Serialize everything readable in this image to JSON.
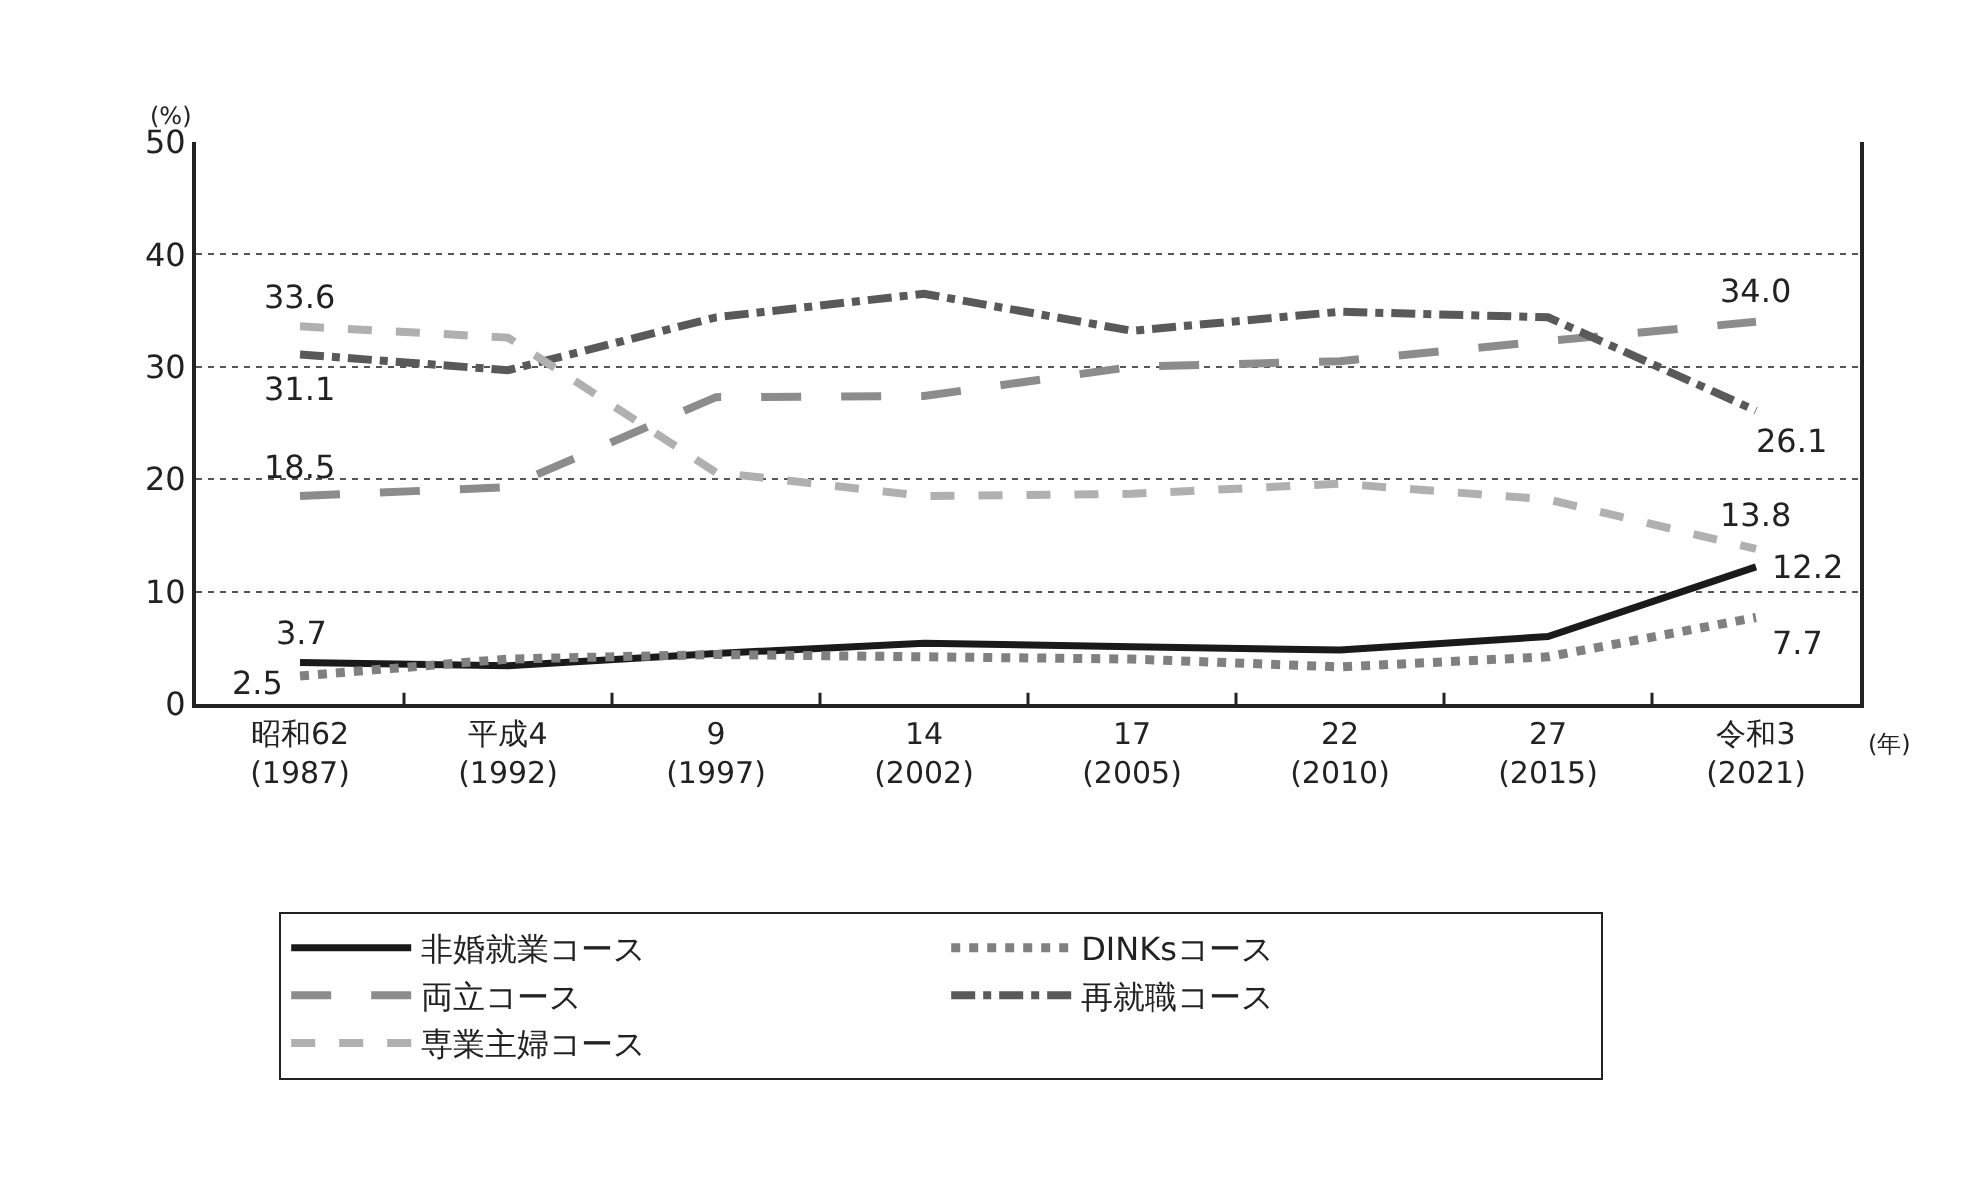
{
  "chart_data": {
    "type": "line",
    "ylabel": "(%)",
    "xlabel": "(年)",
    "categories": [
      "昭和62\n(1987)",
      "平成4\n(1992)",
      "9\n(1997)",
      "14\n(2002)",
      "17\n(2005)",
      "22\n(2010)",
      "27\n(2015)",
      "令和3\n(2021)"
    ],
    "ylim": [
      0,
      50
    ],
    "yticks": [
      0,
      10,
      20,
      30,
      40,
      50
    ],
    "grid": "y",
    "legend": "bottom",
    "marker": "none",
    "series": [
      {
        "name": "非婚就業コース",
        "color": "#1a1a1a",
        "line_style": "solid",
        "values": [
          3.7,
          3.4,
          4.5,
          5.4,
          5.1,
          4.8,
          6.0,
          12.2
        ],
        "value_labels": [
          "3.7",
          null,
          null,
          null,
          null,
          null,
          null,
          "12.2"
        ]
      },
      {
        "name": "DINKsコース",
        "color": "#808080",
        "line_style": "dotted",
        "values": [
          2.5,
          4.0,
          4.4,
          4.2,
          4.0,
          3.3,
          4.2,
          7.7
        ],
        "value_labels": [
          "2.5",
          null,
          null,
          null,
          null,
          null,
          null,
          "7.7"
        ]
      },
      {
        "name": "両立コース",
        "color": "#8c8c8c",
        "line_style": "dashed",
        "values": [
          18.5,
          19.3,
          27.3,
          27.4,
          30.0,
          30.5,
          32.3,
          34.0
        ],
        "value_labels": [
          "18.5",
          null,
          null,
          null,
          null,
          null,
          null,
          "34.0"
        ]
      },
      {
        "name": "再就職コース",
        "color": "#595959",
        "line_style": "dashdot",
        "values": [
          31.1,
          29.7,
          34.4,
          36.5,
          33.2,
          34.9,
          34.4,
          26.1
        ],
        "value_labels": [
          "31.1",
          null,
          null,
          null,
          null,
          null,
          null,
          "26.1"
        ]
      },
      {
        "name": "専業主婦コース",
        "color": "#b0b0b0",
        "line_style": "dashed",
        "values": [
          33.6,
          32.6,
          20.6,
          18.5,
          18.7,
          19.6,
          18.2,
          13.8
        ],
        "value_labels": [
          "33.6",
          null,
          null,
          null,
          null,
          null,
          null,
          "13.8"
        ]
      }
    ]
  }
}
